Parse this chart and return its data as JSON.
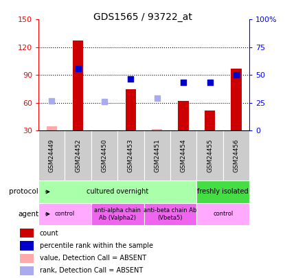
{
  "title": "GDS1565 / 93722_at",
  "samples": [
    "GSM24449",
    "GSM24452",
    "GSM24450",
    "GSM24453",
    "GSM24451",
    "GSM24454",
    "GSM24455",
    "GSM24456"
  ],
  "bar_values": [
    null,
    127,
    null,
    75,
    null,
    62,
    52,
    97
  ],
  "bar_absent_values": [
    35,
    null,
    null,
    null,
    32,
    null,
    null,
    null
  ],
  "rank_present_left": [
    null,
    97,
    null,
    86,
    null,
    82,
    82,
    90
  ],
  "rank_absent_left": [
    62,
    null,
    61,
    null,
    65,
    null,
    null,
    null
  ],
  "ylim_left": [
    30,
    150
  ],
  "ylim_right": [
    0,
    100
  ],
  "yticks_left": [
    30,
    60,
    90,
    120,
    150
  ],
  "yticks_right": [
    0,
    25,
    50,
    75,
    100
  ],
  "ytick_labels_left": [
    "30",
    "60",
    "90",
    "120",
    "150"
  ],
  "ytick_labels_right": [
    "0",
    "25",
    "50",
    "75",
    "100%"
  ],
  "bar_color": "#cc0000",
  "bar_absent_color": "#ffaaaa",
  "rank_present_color": "#0000cc",
  "rank_absent_color": "#aaaaee",
  "protocol_groups": [
    {
      "label": "cultured overnight",
      "start": 0,
      "end": 6,
      "color": "#aaffaa"
    },
    {
      "label": "freshly isolated",
      "start": 6,
      "end": 8,
      "color": "#44dd44"
    }
  ],
  "agent_groups": [
    {
      "label": "control",
      "start": 0,
      "end": 2,
      "color": "#ffaaff"
    },
    {
      "label": "anti-alpha chain\nAb (Valpha2)",
      "start": 2,
      "end": 4,
      "color": "#ee66ee"
    },
    {
      "label": "anti-beta chain Ab\n(Vbeta5)",
      "start": 4,
      "end": 6,
      "color": "#ee66ee"
    },
    {
      "label": "control",
      "start": 6,
      "end": 8,
      "color": "#ffaaff"
    }
  ],
  "legend_items": [
    {
      "label": "count",
      "color": "#cc0000"
    },
    {
      "label": "percentile rank within the sample",
      "color": "#0000cc"
    },
    {
      "label": "value, Detection Call = ABSENT",
      "color": "#ffaaaa"
    },
    {
      "label": "rank, Detection Call = ABSENT",
      "color": "#aaaaee"
    }
  ],
  "background_color": "#ffffff",
  "sample_bg_color": "#cccccc"
}
